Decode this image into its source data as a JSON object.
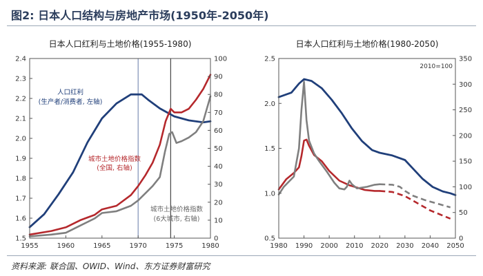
{
  "figure_title": "图2: 日本人口结构与房地产市场(1950年-2050年)",
  "source_note": "资料来源: 联合国、OWID、Wind、东方证券财富研究",
  "chart_data": [
    {
      "type": "line",
      "title": "日本人口红利与土地价格(1955-1980)",
      "xlim": [
        1955,
        1980
      ],
      "x_ticks": [
        1955,
        1960,
        1965,
        1970,
        1975,
        1980
      ],
      "y_left": {
        "lim": [
          1.5,
          2.4
        ],
        "ticks": [
          1.5,
          1.6,
          1.7,
          1.8,
          1.9,
          2.0,
          2.1,
          2.2,
          2.3,
          2.4
        ],
        "tick_labels": [
          "1.5",
          "1.6",
          "1.7",
          "1.8",
          "1.9",
          "2.0",
          "2.1",
          "2.2",
          "2.3",
          "2.4"
        ]
      },
      "y_right": {
        "lim": [
          0,
          100
        ],
        "ticks": [
          0,
          10,
          20,
          30,
          40,
          50,
          60,
          70,
          80,
          90,
          100
        ],
        "tick_labels": [
          "0",
          "10",
          "20",
          "30",
          "40",
          "50",
          "60",
          "70",
          "80",
          "90",
          "100"
        ]
      },
      "reference_lines": [
        {
          "x": 1970,
          "color": "#7d8fb5"
        },
        {
          "x": 1974.5,
          "color": "#444444"
        }
      ],
      "series": [
        {
          "name": "人口红利",
          "note": "(生产者/消费者, 左轴)",
          "axis": "left",
          "color": "#203f7a",
          "points": [
            [
              1955,
              1.555
            ],
            [
              1957,
              1.62
            ],
            [
              1959,
              1.72
            ],
            [
              1961,
              1.83
            ],
            [
              1963,
              1.98
            ],
            [
              1965,
              2.1
            ],
            [
              1967,
              2.175
            ],
            [
              1969,
              2.22
            ],
            [
              1970.5,
              2.22
            ],
            [
              1971.5,
              2.19
            ],
            [
              1973,
              2.15
            ],
            [
              1975,
              2.11
            ],
            [
              1977,
              2.09
            ],
            [
              1979,
              2.08
            ],
            [
              1980,
              2.085
            ]
          ]
        },
        {
          "name": "城市土地价格指数",
          "note": "(全国, 右轴)",
          "axis": "right",
          "color": "#b5282c",
          "points": [
            [
              1955,
              2
            ],
            [
              1958,
              4
            ],
            [
              1960,
              6
            ],
            [
              1962,
              10
            ],
            [
              1964,
              13
            ],
            [
              1965,
              16
            ],
            [
              1967,
              18
            ],
            [
              1969,
              24
            ],
            [
              1970,
              29
            ],
            [
              1971,
              35
            ],
            [
              1972,
              42
            ],
            [
              1973,
              52
            ],
            [
              1973.8,
              65
            ],
            [
              1974.5,
              72
            ],
            [
              1975,
              70
            ],
            [
              1976,
              70
            ],
            [
              1977,
              72
            ],
            [
              1978,
              77
            ],
            [
              1979,
              83
            ],
            [
              1980,
              91
            ]
          ]
        },
        {
          "name": "城市土地价格指数",
          "note": "(6大城市, 右轴)",
          "axis": "right",
          "color": "#7f7f7f",
          "points": [
            [
              1955,
              1
            ],
            [
              1958,
              2
            ],
            [
              1960,
              3
            ],
            [
              1962,
              7
            ],
            [
              1964,
              11
            ],
            [
              1965,
              14
            ],
            [
              1967,
              15
            ],
            [
              1969,
              18
            ],
            [
              1970,
              21
            ],
            [
              1971,
              25
            ],
            [
              1972,
              29
            ],
            [
              1973,
              34
            ],
            [
              1973.7,
              48
            ],
            [
              1974.3,
              58
            ],
            [
              1974.7,
              59
            ],
            [
              1975.3,
              53
            ],
            [
              1976,
              54
            ],
            [
              1977,
              56
            ],
            [
              1978,
              59
            ],
            [
              1979,
              65
            ],
            [
              1980,
              79
            ]
          ]
        }
      ]
    },
    {
      "type": "line",
      "title": "日本人口红利与土地价格(1980-2050)",
      "xlim": [
        1980,
        2050
      ],
      "x_ticks": [
        1980,
        1990,
        2000,
        2010,
        2020,
        2030,
        2040,
        2050
      ],
      "y_left": {
        "lim": [
          0.5,
          2.5
        ],
        "ticks": [
          0.5,
          1.0,
          1.5,
          2.0,
          2.5
        ],
        "tick_labels": [
          "0.5",
          "1.0",
          "1.5",
          "2.0",
          "2.5"
        ]
      },
      "y_right": {
        "lim": [
          0,
          350
        ],
        "ticks": [
          0,
          50,
          100,
          150,
          200,
          250,
          300,
          350
        ],
        "tick_labels": [
          "0",
          "50",
          "100",
          "150",
          "200",
          "250",
          "300",
          "350"
        ]
      },
      "annotation": "2010=100",
      "series": [
        {
          "name": "人口红利",
          "axis": "left",
          "color": "#203f7a",
          "points": [
            [
              1980,
              2.07
            ],
            [
              1985,
              2.12
            ],
            [
              1988,
              2.22
            ],
            [
              1990,
              2.27
            ],
            [
              1993,
              2.25
            ],
            [
              1997,
              2.17
            ],
            [
              2001,
              2.04
            ],
            [
              2005,
              1.89
            ],
            [
              2009,
              1.72
            ],
            [
              2013,
              1.58
            ],
            [
              2017,
              1.48
            ],
            [
              2020,
              1.45
            ],
            [
              2025,
              1.42
            ],
            [
              2030,
              1.37
            ],
            [
              2033,
              1.28
            ],
            [
              2037,
              1.16
            ],
            [
              2041,
              1.07
            ],
            [
              2045,
              1.02
            ],
            [
              2048,
              1.0
            ],
            [
              2050,
              0.98
            ]
          ]
        },
        {
          "name": "城市土地价格指数(全国)",
          "axis": "right",
          "color": "#b5282c",
          "dashed_from": 2020,
          "points": [
            [
              1980,
              95
            ],
            [
              1983,
              115
            ],
            [
              1986,
              127
            ],
            [
              1988,
              138
            ],
            [
              1989,
              160
            ],
            [
              1990,
              190
            ],
            [
              1991,
              192
            ],
            [
              1992,
              180
            ],
            [
              1994,
              162
            ],
            [
              1997,
              150
            ],
            [
              2000,
              131
            ],
            [
              2004,
              112
            ],
            [
              2008,
              103
            ],
            [
              2010,
              100
            ],
            [
              2014,
              94
            ],
            [
              2018,
              92
            ],
            [
              2020,
              92
            ],
            [
              2025,
              90
            ],
            [
              2030,
              82
            ],
            [
              2035,
              68
            ],
            [
              2040,
              54
            ],
            [
              2045,
              44
            ],
            [
              2048,
              38
            ]
          ]
        },
        {
          "name": "城市土地价格指数(6大城市)",
          "axis": "right",
          "color": "#7f7f7f",
          "dashed_from": 2020,
          "points": [
            [
              1980,
              85
            ],
            [
              1982,
              100
            ],
            [
              1984,
              110
            ],
            [
              1986,
              120
            ],
            [
              1988,
              175
            ],
            [
              1989,
              250
            ],
            [
              1990,
              305
            ],
            [
              1991,
              230
            ],
            [
              1992,
              190
            ],
            [
              1994,
              165
            ],
            [
              1996,
              150
            ],
            [
              1999,
              130
            ],
            [
              2002,
              108
            ],
            [
              2004,
              97
            ],
            [
              2006,
              95
            ],
            [
              2007,
              100
            ],
            [
              2008,
              112
            ],
            [
              2009,
              105
            ],
            [
              2011,
              97
            ],
            [
              2015,
              100
            ],
            [
              2018,
              104
            ],
            [
              2020,
              105
            ],
            [
              2025,
              104
            ],
            [
              2028,
              100
            ],
            [
              2030,
              92
            ],
            [
              2033,
              83
            ],
            [
              2038,
              74
            ],
            [
              2043,
              67
            ],
            [
              2048,
              60
            ]
          ]
        }
      ]
    }
  ],
  "legend_labels": {
    "demo": "人口红利",
    "demo_note": "(生产者/消费者, 左轴)",
    "land_all": "城市土地价格指数",
    "land_all_note": "(全国, 右轴)",
    "land_six": "城市土地价格指数",
    "land_six_note": "(6大城市, 右轴)"
  }
}
